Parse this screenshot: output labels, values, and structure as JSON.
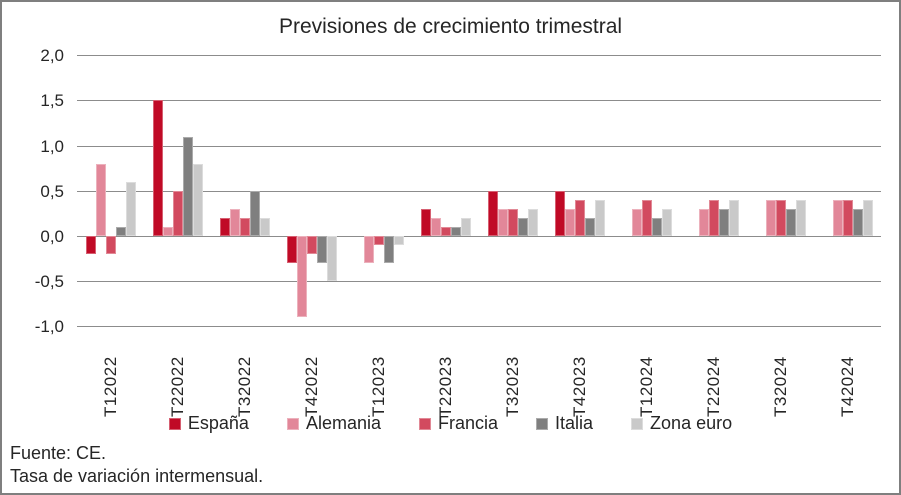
{
  "title": "Previsiones de crecimiento trimestral",
  "footer": {
    "source_line": "Fuente: CE.",
    "note_line": "Tasa de variación intermensual."
  },
  "chart_data": {
    "type": "bar",
    "title": "Previsiones de crecimiento trimestral",
    "xlabel": "",
    "ylabel": "",
    "ylim": [
      -1.0,
      2.0
    ],
    "ytick_step": 0.5,
    "ytick_labels": [
      "2,0",
      "1,5",
      "1,0",
      "0,5",
      "0,0",
      "-0,5",
      "-1,0"
    ],
    "grid": true,
    "legend_position": "bottom",
    "categories": [
      "T12022",
      "T22022",
      "T32022",
      "T42022",
      "T12023",
      "T22023",
      "T32023",
      "T42023",
      "T12024",
      "T22024",
      "T32024",
      "T42024"
    ],
    "series": [
      {
        "name": "España",
        "color": "#c00a26",
        "values": [
          -0.2,
          1.5,
          0.2,
          -0.3,
          0.0,
          0.3,
          0.5,
          0.5,
          null,
          null,
          null,
          null
        ]
      },
      {
        "name": "Alemania",
        "color": "#e28799",
        "values": [
          0.8,
          0.1,
          0.3,
          -0.9,
          -0.3,
          0.2,
          0.3,
          0.3,
          0.3,
          0.3,
          0.4,
          0.4
        ]
      },
      {
        "name": "Francia",
        "color": "#d24a5f",
        "values": [
          -0.2,
          0.5,
          0.2,
          -0.2,
          -0.1,
          0.1,
          0.3,
          0.4,
          0.4,
          0.4,
          0.4,
          0.4
        ]
      },
      {
        "name": "Italia",
        "color": "#7f7f7f",
        "values": [
          0.1,
          1.1,
          0.5,
          -0.3,
          -0.3,
          0.1,
          0.2,
          0.2,
          0.2,
          0.3,
          0.3,
          0.3
        ]
      },
      {
        "name": "Zona euro",
        "color": "#c9c9c9",
        "values": [
          0.6,
          0.8,
          0.2,
          -0.5,
          -0.1,
          0.2,
          0.3,
          0.4,
          0.3,
          0.4,
          0.4,
          0.4
        ]
      }
    ]
  }
}
